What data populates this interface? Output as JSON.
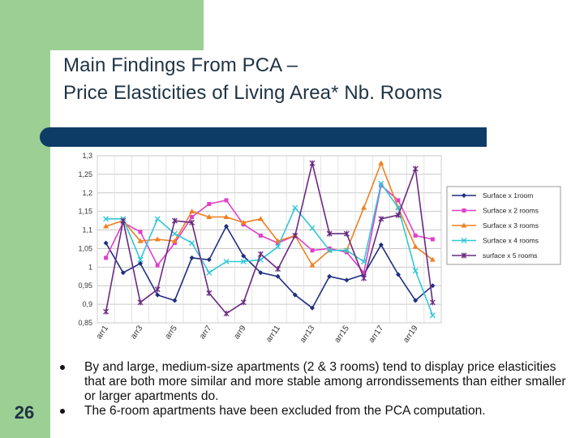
{
  "slide": {
    "title_line1": "Main Findings From PCA –",
    "title_line2": "Price Elasticities of Living Area* Nb. Rooms",
    "slide_number": "26",
    "bullets": [
      "By and large, medium-size apartments (2 & 3 rooms) tend to display price elasticities that are both more similar and more stable among arrondissements than either smaller or larger apartments do.",
      "The 6-room apartments have been excluded from the PCA computation."
    ]
  },
  "chart_data": {
    "type": "line",
    "title": "",
    "xlabel": "",
    "ylabel": "",
    "categories": [
      "arr1",
      "arr2",
      "arr3",
      "arr4",
      "arr5",
      "arr6",
      "arr7",
      "arr8",
      "arr9",
      "arr10",
      "arr11",
      "arr12",
      "arr13",
      "arr14",
      "arr15",
      "arr16",
      "arr17",
      "arr18",
      "arr19",
      "arr20"
    ],
    "x_tick_labels": [
      "arr1",
      "arr3",
      "arr5",
      "arr7",
      "arr9",
      "arr11",
      "arr13",
      "arr15",
      "arr17",
      "arr19"
    ],
    "y_tick_labels": [
      "0,85",
      "0,9",
      "0,95",
      "1",
      "1,05",
      "1,1",
      "1,15",
      "1,2",
      "1,25",
      "1,3"
    ],
    "ylim": [
      0.85,
      1.3
    ],
    "grid": true,
    "legend_position": "right",
    "series": [
      {
        "name": "Surface x 1room",
        "color": "#1f2f80",
        "marker": "diamond",
        "values": [
          1.065,
          0.985,
          1.01,
          0.925,
          0.91,
          1.025,
          1.02,
          1.11,
          1.03,
          0.985,
          0.975,
          0.925,
          0.89,
          0.975,
          0.965,
          0.98,
          1.06,
          0.98,
          0.91,
          0.95
        ]
      },
      {
        "name": "Surface x 2 rooms",
        "color": "#e040c8",
        "marker": "square",
        "values": [
          1.025,
          1.12,
          1.095,
          1.005,
          1.065,
          1.135,
          1.17,
          1.18,
          1.115,
          1.085,
          1.065,
          1.085,
          1.045,
          1.05,
          1.04,
          0.985,
          1.22,
          1.18,
          1.085,
          1.075
        ]
      },
      {
        "name": "Surface x 3 rooms",
        "color": "#f08020",
        "marker": "triangle",
        "values": [
          1.11,
          1.125,
          1.07,
          1.075,
          1.07,
          1.15,
          1.135,
          1.135,
          1.12,
          1.13,
          1.07,
          1.085,
          1.005,
          1.045,
          1.045,
          1.16,
          1.28,
          1.16,
          1.055,
          1.02
        ]
      },
      {
        "name": "Surface x 4 rooms",
        "color": "#30c8d8",
        "marker": "x",
        "values": [
          1.13,
          1.13,
          1.02,
          1.13,
          1.09,
          1.065,
          0.985,
          1.015,
          1.015,
          1.02,
          1.055,
          1.16,
          1.105,
          1.045,
          1.045,
          1.015,
          1.225,
          1.16,
          0.99,
          0.87
        ]
      },
      {
        "name": "surface x 5 rooms",
        "color": "#6a2a80",
        "marker": "star",
        "values": [
          0.88,
          1.125,
          0.905,
          0.94,
          1.125,
          1.12,
          0.93,
          0.875,
          0.905,
          1.035,
          0.995,
          1.085,
          1.28,
          1.09,
          1.09,
          0.97,
          1.13,
          1.14,
          1.265,
          0.905
        ]
      }
    ]
  }
}
